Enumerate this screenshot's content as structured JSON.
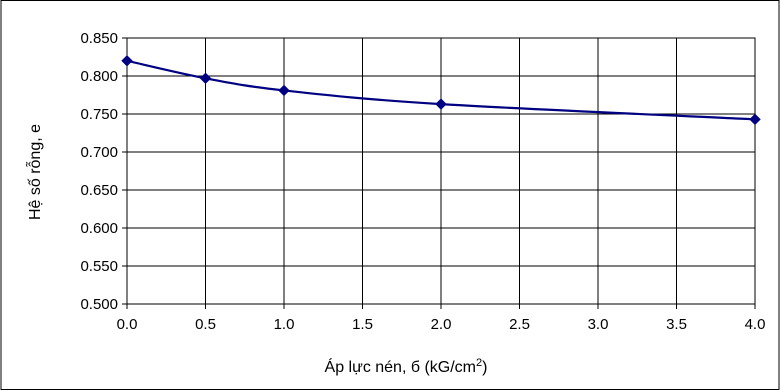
{
  "chart_data": {
    "type": "line",
    "title": "",
    "xlabel": "Áp lực nén, б (kG/cm",
    "xlabel_superscript": "2",
    "xlabel_suffix": ")",
    "ylabel": "Hệ số rỗng, e",
    "xlim": [
      0,
      4
    ],
    "ylim": [
      0.5,
      0.85
    ],
    "x_ticks": [
      "0.0",
      "0.5",
      "1.0",
      "1.5",
      "2.0",
      "2.5",
      "3.0",
      "3.5",
      "4.0"
    ],
    "y_ticks": [
      "0.500",
      "0.550",
      "0.600",
      "0.650",
      "0.700",
      "0.750",
      "0.800",
      "0.850"
    ],
    "grid": true,
    "legend": "none",
    "series": [
      {
        "color": "#000080",
        "marker": "diamond",
        "x": [
          0,
          0.5,
          1.0,
          2.0,
          4.0
        ],
        "y": [
          0.82,
          0.797,
          0.781,
          0.763,
          0.743
        ]
      }
    ]
  }
}
